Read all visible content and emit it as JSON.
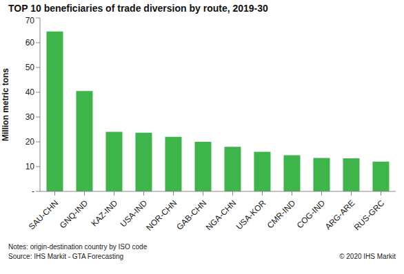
{
  "chart_data": {
    "type": "bar",
    "title": "TOP 10 beneficiaries of trade diversion by route, 2019-30",
    "ylabel": "Million metric tons",
    "categories": [
      "SAU-CHN",
      "GNQ-IND",
      "KAZ-IND",
      "USA-IND",
      "NOR-CHN",
      "GAB-CHN",
      "NGA-CHN",
      "USA-KOR",
      "CMR-IND",
      "COG-IND",
      "ARG-ARE",
      "RUS-GRC"
    ],
    "values": [
      64.5,
      40.5,
      24,
      23.7,
      22,
      20,
      18,
      16,
      14.6,
      13.5,
      13.3,
      12
    ],
    "color": "#3db54a",
    "ylim": [
      0,
      70
    ],
    "yticks": [
      {
        "value": 0,
        "label": "-"
      },
      10,
      20,
      30,
      40,
      50,
      60,
      70
    ],
    "grid": false,
    "notes": [
      "Notes: origin-destination country by ISO code",
      "Source: IHS Markit - GTA Forecasting"
    ],
    "copyright": "© 2020 IHS Markit"
  }
}
